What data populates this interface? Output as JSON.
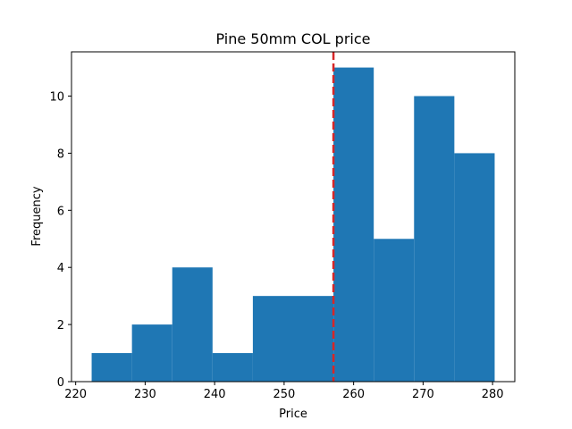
{
  "chart_data": {
    "type": "bar",
    "subtype": "histogram",
    "title": "Pine 50mm COL price",
    "xlabel": "Price",
    "ylabel": "Frequency",
    "xlim": [
      219.4,
      283.2
    ],
    "ylim": [
      0,
      11.55
    ],
    "bin_edges": [
      222.3,
      228.1,
      233.9,
      239.7,
      245.5,
      251.3,
      257.1,
      262.9,
      268.7,
      274.5,
      280.3
    ],
    "values": [
      1,
      2,
      4,
      1,
      3,
      3,
      11,
      5,
      10,
      8
    ],
    "xticks": [
      220,
      230,
      240,
      250,
      260,
      270,
      280
    ],
    "yticks": [
      0,
      2,
      4,
      6,
      8,
      10
    ],
    "reference_line": {
      "x": 257.1,
      "style": "dashed"
    },
    "colors": {
      "bars": "#1f77b4",
      "reference_line": "#d62728"
    },
    "grid": false,
    "legend": "none"
  }
}
